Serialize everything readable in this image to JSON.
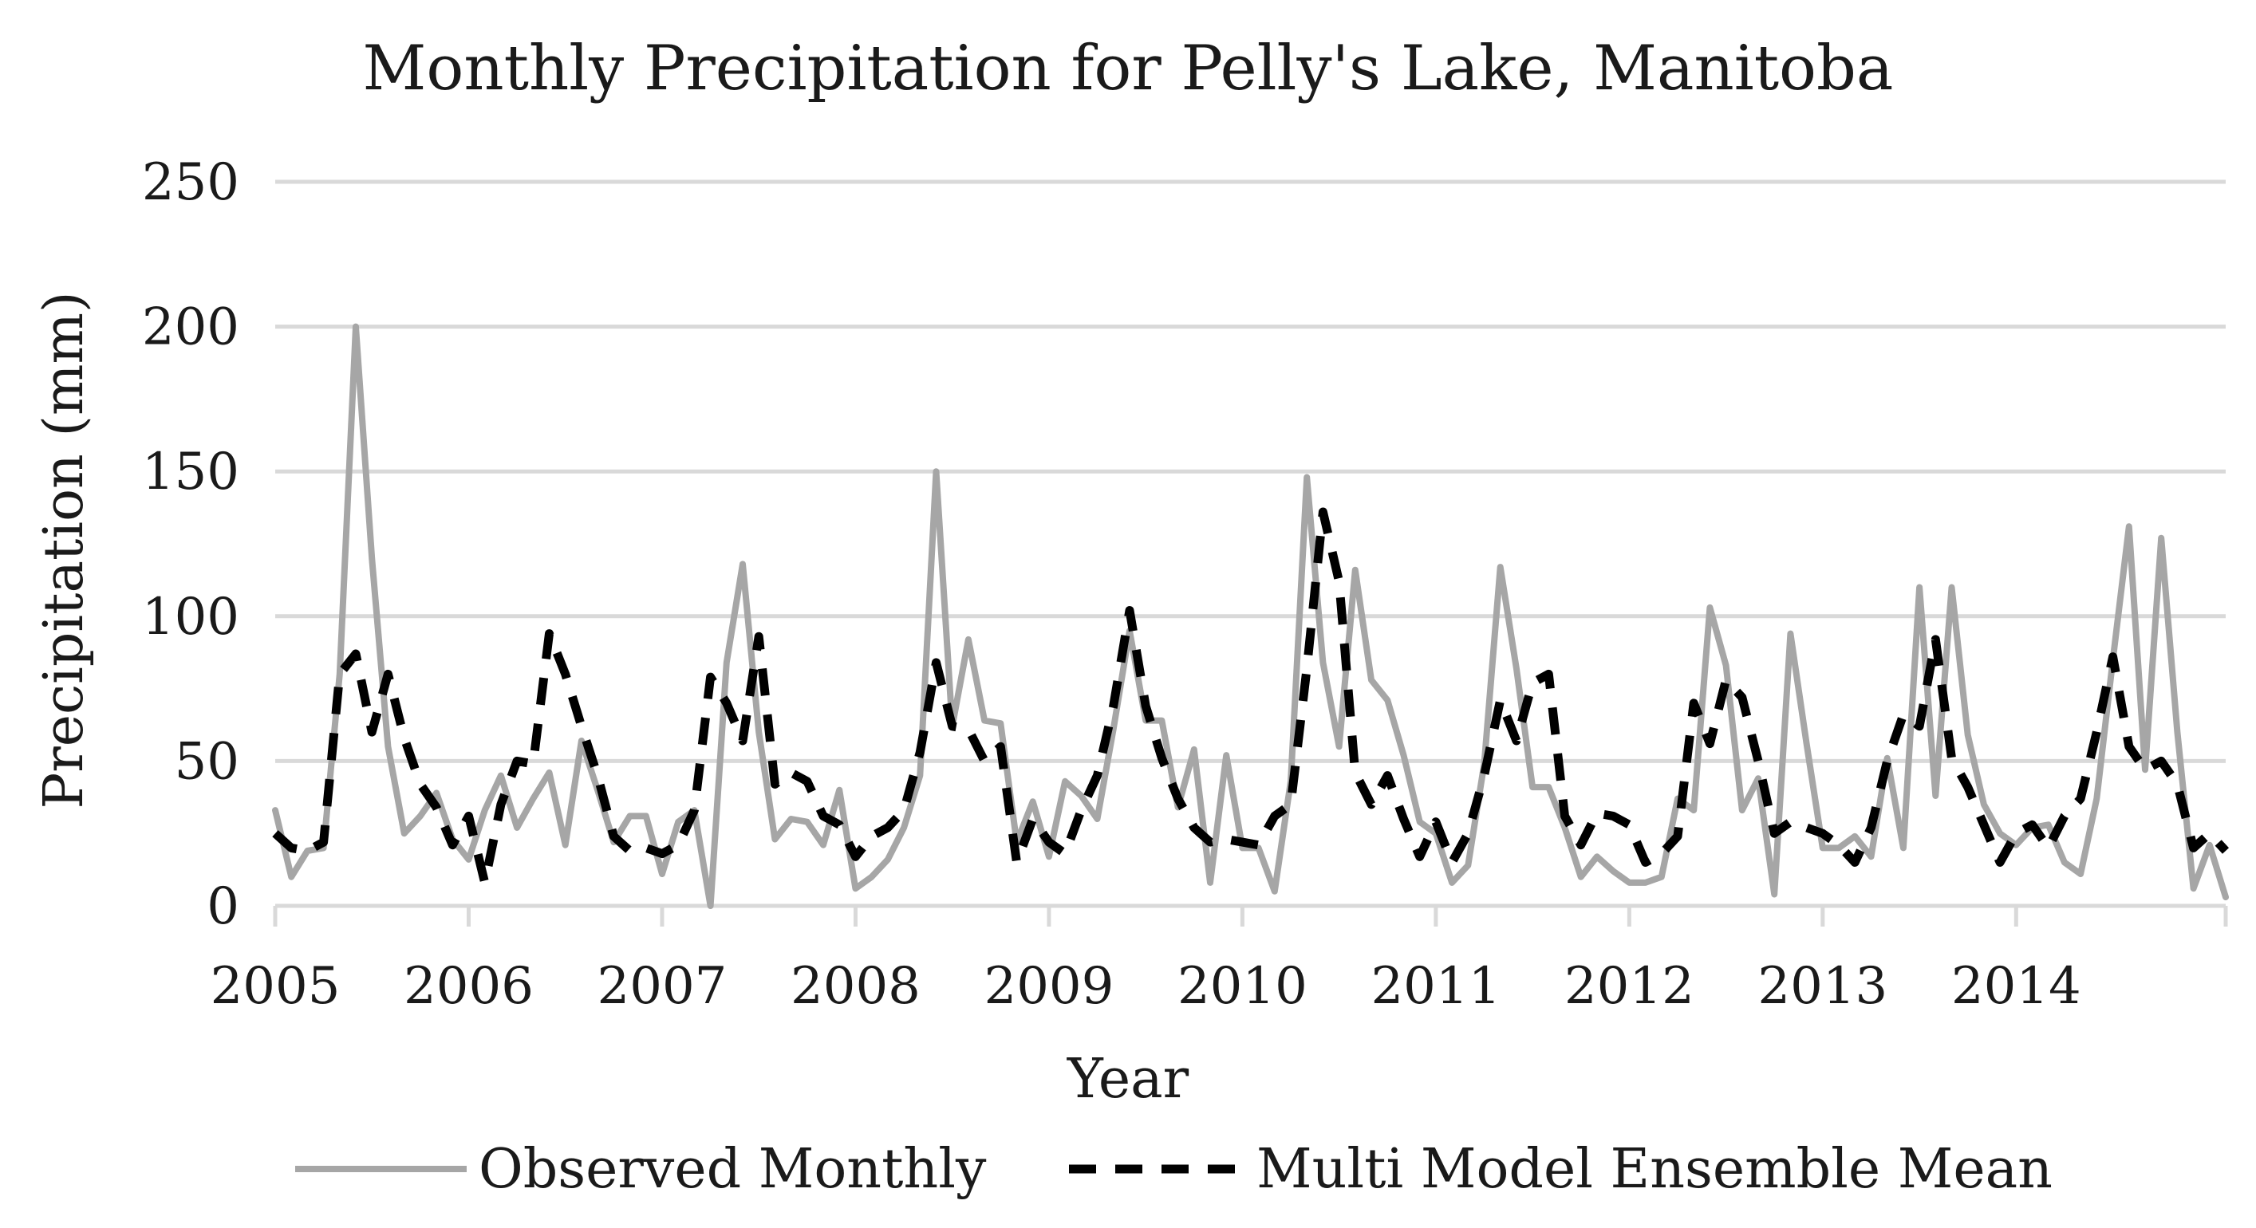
{
  "chart_data": {
    "type": "line",
    "title": "Monthly Precipitation for Pelly's Lake, Manitoba",
    "xlabel": "Year",
    "ylabel": "Precipitation (mm)",
    "ylim": [
      0,
      250
    ],
    "yticks": [
      0,
      50,
      100,
      150,
      200,
      250
    ],
    "x_tick_labels": [
      "2005",
      "2006",
      "2007",
      "2008",
      "2009",
      "2010",
      "2011",
      "2012",
      "2013",
      "2014"
    ],
    "start_year": 2005,
    "months_per_year": 12,
    "legend_position": "bottom",
    "grid": true,
    "series": [
      {
        "name": "Observed Monthly",
        "style": "solid",
        "color": "#a6a6a6",
        "values": [
          33,
          10,
          19,
          20,
          80,
          200,
          120,
          55,
          25,
          31,
          39,
          23,
          16,
          33,
          45,
          27,
          37,
          46,
          21,
          57,
          40,
          22,
          31,
          31,
          11,
          29,
          33,
          0,
          84,
          118,
          60,
          23,
          30,
          29,
          21,
          40,
          6,
          10,
          16,
          27,
          45,
          150,
          62,
          92,
          64,
          63,
          22,
          36,
          17,
          43,
          38,
          30,
          61,
          95,
          64,
          64,
          34,
          54,
          8,
          52,
          20,
          20,
          5,
          43,
          148,
          84,
          55,
          116,
          78,
          71,
          52,
          29,
          25,
          8,
          14,
          49,
          117,
          82,
          41,
          41,
          27,
          10,
          17,
          12,
          8,
          8,
          10,
          37,
          33,
          103,
          83,
          33,
          44,
          4,
          94,
          56,
          20,
          20,
          24,
          17,
          51,
          20,
          110,
          38,
          110,
          59,
          35,
          25,
          21,
          27,
          28,
          15,
          11,
          37,
          85,
          131,
          47,
          127,
          60,
          6,
          21,
          3
        ]
      },
      {
        "name": "Multi Model Ensemble Mean",
        "style": "dashed",
        "color": "#000000",
        "values": [
          25,
          20,
          19,
          22,
          80,
          87,
          60,
          80,
          58,
          42,
          34,
          21,
          31,
          8,
          35,
          50,
          49,
          94,
          80,
          62,
          45,
          24,
          19,
          20,
          18,
          21,
          33,
          79,
          70,
          57,
          93,
          42,
          46,
          43,
          31,
          28,
          17,
          24,
          27,
          33,
          53,
          84,
          62,
          61,
          50,
          55,
          15,
          30,
          22,
          18,
          33,
          45,
          69,
          102,
          69,
          51,
          37,
          27,
          22,
          23,
          22,
          21,
          31,
          35,
          82,
          136,
          112,
          46,
          35,
          45,
          30,
          17,
          29,
          15,
          25,
          45,
          71,
          57,
          77,
          80,
          31,
          21,
          32,
          31,
          28,
          15,
          18,
          24,
          70,
          56,
          78,
          72,
          50,
          25,
          29,
          27,
          25,
          21,
          15,
          27,
          50,
          66,
          62,
          92,
          51,
          41,
          28,
          15,
          25,
          28,
          20,
          31,
          37,
          60,
          86,
          55,
          47,
          50,
          42,
          20,
          25,
          19
        ]
      }
    ]
  }
}
